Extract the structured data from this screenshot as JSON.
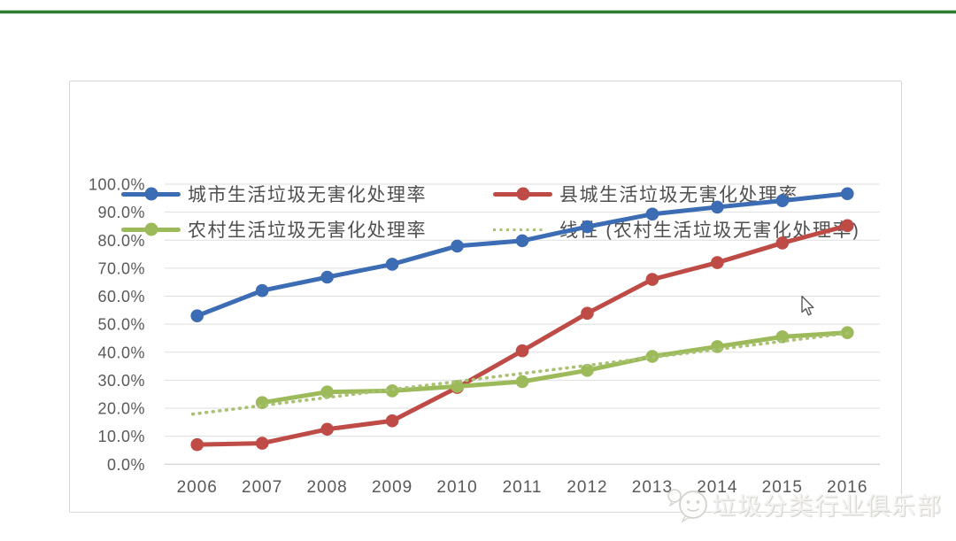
{
  "page": {
    "background": "#ffffff",
    "accent_bar_color": "#2f7d33"
  },
  "chart_data": {
    "type": "line",
    "title": "",
    "x": [
      "2006",
      "2007",
      "2008",
      "2009",
      "2010",
      "2011",
      "2012",
      "2013",
      "2014",
      "2015",
      "2016"
    ],
    "y_axis": {
      "min": 0,
      "max": 100,
      "step": 10,
      "unit": "%",
      "tick_labels": [
        "100.0%",
        "90.0%",
        "80.0%",
        "70.0%",
        "60.0%",
        "50.0%",
        "40.0%",
        "30.0%",
        "20.0%",
        "10.0%",
        "0.0%"
      ]
    },
    "grid": true,
    "legend_position": "top",
    "series": [
      {
        "name": "城市生活垃圾无害化处理率",
        "type": "line",
        "marker": "circle",
        "color": "#3c6cb4",
        "values": [
          53.0,
          62.0,
          66.8,
          71.4,
          77.9,
          79.8,
          84.8,
          89.3,
          91.8,
          94.1,
          96.6
        ]
      },
      {
        "name": "县城生活垃圾无害化处理率",
        "type": "line",
        "marker": "circle",
        "color": "#be4b46",
        "values": [
          7.0,
          7.5,
          12.5,
          15.5,
          27.4,
          40.5,
          53.9,
          66.0,
          72.0,
          79.0,
          85.2
        ]
      },
      {
        "name": "农村生活垃圾无害化处理率",
        "type": "line",
        "marker": "circle",
        "color": "#9cba5a",
        "values": [
          null,
          22.0,
          25.8,
          26.2,
          27.8,
          29.5,
          33.5,
          38.5,
          42.0,
          45.5,
          47.0
        ]
      },
      {
        "name": "线性 (农村生活垃圾无害化处理率)",
        "type": "trendline",
        "style": "dotted",
        "color": "#a8c173",
        "trend": {
          "start_x": "2006",
          "start_value": 17.9,
          "end_x": "2016",
          "end_value": 46.9
        }
      }
    ]
  },
  "watermark": {
    "logo": "speech-bubble-face-logo",
    "text": "垃圾分类行业俱乐部"
  }
}
